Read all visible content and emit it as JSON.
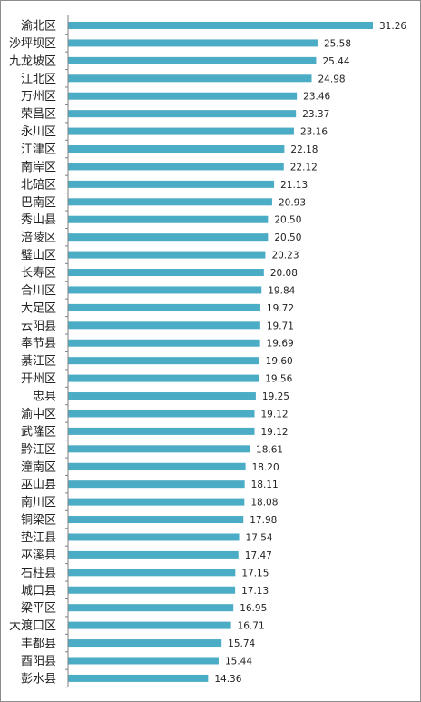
{
  "chart_data": {
    "type": "bar",
    "orientation": "horizontal",
    "title": "",
    "xlabel": "",
    "ylabel": "",
    "grid": false,
    "legend": "none",
    "bar_color": "#4bacc6",
    "axis_color": "#7f7f7f",
    "value_format": "2 decimals",
    "xlim": [
      0,
      31.26
    ],
    "categories": [
      "渝北区",
      "沙坪坝区",
      "九龙坡区",
      "江北区",
      "万州区",
      "荣昌区",
      "永川区",
      "江津区",
      "南岸区",
      "北碚区",
      "巴南区",
      "秀山县",
      "涪陵区",
      "璧山区",
      "长寿区",
      "合川区",
      "大足区",
      "云阳县",
      "奉节县",
      "綦江区",
      "开州区",
      "忠县",
      "渝中区",
      "武隆区",
      "黔江区",
      "潼南区",
      "巫山县",
      "南川区",
      "铜梁区",
      "垫江县",
      "巫溪县",
      "石柱县",
      "城口县",
      "梁平区",
      "大渡口区",
      "丰都县",
      "酉阳县",
      "彭水县"
    ],
    "values": [
      31.26,
      25.58,
      25.44,
      24.98,
      23.46,
      23.37,
      23.16,
      22.18,
      22.12,
      21.13,
      20.93,
      20.5,
      20.5,
      20.23,
      20.08,
      19.84,
      19.72,
      19.71,
      19.69,
      19.6,
      19.56,
      19.25,
      19.12,
      19.12,
      18.61,
      18.2,
      18.11,
      18.08,
      17.98,
      17.54,
      17.47,
      17.15,
      17.13,
      16.95,
      16.71,
      15.74,
      15.44,
      14.36
    ]
  }
}
